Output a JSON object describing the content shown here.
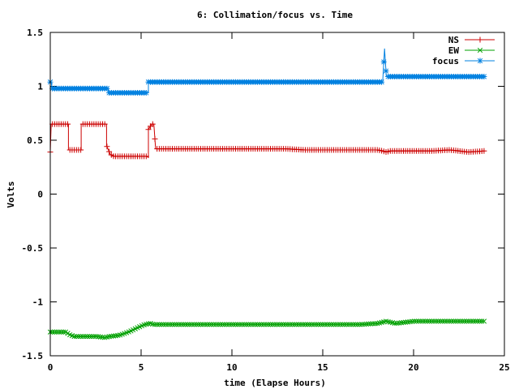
{
  "chart_data": {
    "type": "line",
    "title": "6: Collimation/focus vs. Time",
    "xlabel": "time (Elapse Hours)",
    "ylabel": "Volts",
    "xlim": [
      0,
      25
    ],
    "ylim": [
      -1.5,
      1.5
    ],
    "x_ticks": [
      0,
      5,
      10,
      15,
      20,
      25
    ],
    "x_tick_labels": [
      "0",
      "5",
      "10",
      "15",
      "20",
      "25"
    ],
    "y_ticks": [
      -1.5,
      -1,
      -0.5,
      0,
      0.5,
      1,
      1.5
    ],
    "y_tick_labels": [
      "-1.5",
      "-1",
      "-0.5",
      "0",
      "0.5",
      "1",
      "1.5"
    ],
    "grid": false,
    "legend_position": "top-right",
    "series": [
      {
        "name": "NS",
        "color": "#cc0000",
        "marker": "plus",
        "x": [
          0.0,
          0.05,
          0.1,
          1.0,
          1.0,
          1.7,
          1.7,
          3.1,
          3.1,
          3.3,
          3.5,
          5.3,
          5.4,
          5.4,
          5.6,
          5.7,
          5.8,
          6.0,
          10.0,
          13.0,
          14.0,
          16.0,
          18.0,
          18.3,
          18.5,
          18.7,
          19.0,
          20.0,
          21.0,
          22.0,
          23.0,
          23.9
        ],
        "y": [
          0.39,
          0.65,
          0.65,
          0.65,
          0.41,
          0.41,
          0.65,
          0.65,
          0.45,
          0.37,
          0.35,
          0.35,
          0.34,
          0.6,
          0.65,
          0.65,
          0.42,
          0.42,
          0.42,
          0.42,
          0.41,
          0.41,
          0.41,
          0.4,
          0.39,
          0.4,
          0.4,
          0.4,
          0.4,
          0.41,
          0.39,
          0.4
        ]
      },
      {
        "name": "EW",
        "color": "#00a000",
        "marker": "cross",
        "x": [
          0.0,
          0.9,
          1.0,
          1.3,
          2.5,
          3.0,
          3.3,
          3.8,
          4.3,
          4.8,
          5.2,
          5.5,
          5.7,
          6.0,
          10.0,
          15.0,
          17.0,
          18.0,
          18.5,
          19.0,
          19.5,
          20.0,
          22.0,
          23.9
        ],
        "y": [
          -1.28,
          -1.28,
          -1.3,
          -1.32,
          -1.32,
          -1.33,
          -1.32,
          -1.31,
          -1.28,
          -1.24,
          -1.21,
          -1.2,
          -1.21,
          -1.21,
          -1.21,
          -1.21,
          -1.21,
          -1.2,
          -1.18,
          -1.2,
          -1.19,
          -1.18,
          -1.18,
          -1.18
        ]
      },
      {
        "name": "focus",
        "color": "#0080e0",
        "marker": "star",
        "x": [
          0.0,
          0.05,
          0.1,
          0.2,
          3.2,
          3.2,
          5.4,
          5.4,
          18.3,
          18.4,
          18.5,
          18.6,
          23.9
        ],
        "y": [
          1.04,
          1.04,
          0.98,
          0.98,
          0.98,
          0.94,
          0.94,
          1.04,
          1.04,
          1.35,
          1.09,
          1.09,
          1.09
        ]
      }
    ]
  }
}
